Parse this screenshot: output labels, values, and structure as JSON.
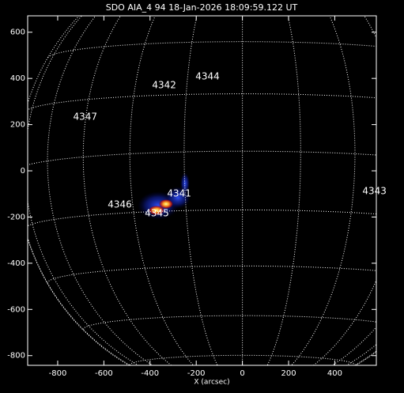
{
  "chart_data": {
    "type": "image",
    "title": "SDO AIA_4 94 18-Jan-2026 18:09:59.122 UT",
    "xlabel": "X (arcsec)",
    "xlim": [
      -930,
      580
    ],
    "ylim": [
      -842,
      671
    ],
    "xticks": [
      -800,
      -600,
      -400,
      -200,
      0,
      200,
      400
    ],
    "yticks": [
      -800,
      -600,
      -400,
      -200,
      0,
      200,
      400,
      600
    ],
    "annotations": [
      {
        "text": "4347",
        "x": -681,
        "y": 233
      },
      {
        "text": "4342",
        "x": -339,
        "y": 370
      },
      {
        "text": "4344",
        "x": -151,
        "y": 408
      },
      {
        "text": "4346",
        "x": -531,
        "y": -147
      },
      {
        "text": "4341",
        "x": -274,
        "y": -99
      },
      {
        "text": "4345",
        "x": -370,
        "y": -185
      },
      {
        "text": "4343",
        "x": 572,
        "y": -89
      }
    ]
  }
}
